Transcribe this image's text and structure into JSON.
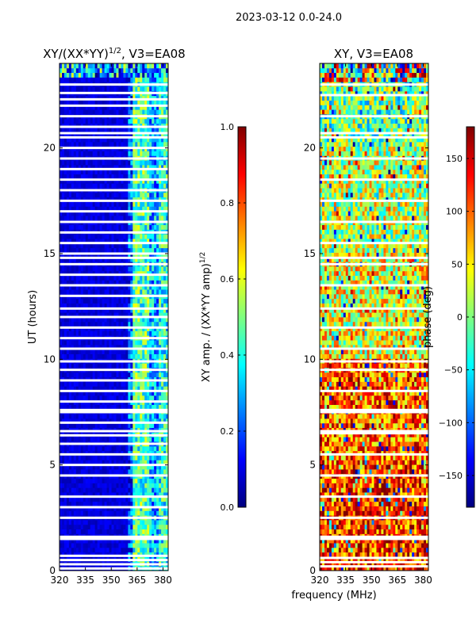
{
  "figure": {
    "suptitle": "2023-03-12 0.0-24.0",
    "xlabel_shared": "frequency (MHz)"
  },
  "colors": {
    "jet": [
      "#00007f",
      "#0000ff",
      "#007fff",
      "#00ffff",
      "#7fff7f",
      "#ffff00",
      "#ff7f00",
      "#ff0000",
      "#7f0000"
    ],
    "gap": "#ffffff",
    "frame": "#000000"
  },
  "chart_data": [
    {
      "type": "heatmap",
      "id": "amplitude",
      "title_main": "XY/(XX*YY)",
      "title_sup": "1/2",
      "title_tail": ", V3=EA08",
      "ylabel": "UT (hours)",
      "x_ticks": [
        320,
        335,
        350,
        365,
        380
      ],
      "y_ticks": [
        0,
        5,
        10,
        15,
        20
      ],
      "xlim": [
        320,
        383
      ],
      "ylim": [
        0,
        24
      ],
      "colorbar": {
        "label_main": "XY amp. / (XX*YY amp)",
        "label_sup": "1/2",
        "range": [
          0.0,
          1.0
        ],
        "ticks": [
          "0.0",
          "0.2",
          "0.4",
          "0.6",
          "0.8",
          "1.0"
        ],
        "tick_values": [
          0.0,
          0.2,
          0.4,
          0.6,
          0.8,
          1.0
        ]
      },
      "approx_value_bands_by_frequency_mhz": [
        {
          "from": 320,
          "to": 360,
          "value": 0.05
        },
        {
          "from": 360,
          "to": 363,
          "value": 0.2
        },
        {
          "from": 363,
          "to": 372,
          "value": 0.45
        },
        {
          "from": 372,
          "to": 377,
          "value": 0.3
        },
        {
          "from": 377,
          "to": 383,
          "value": 0.4
        }
      ],
      "blank_hours": [
        0.1,
        0.3,
        0.5,
        0.7,
        1.5,
        1.6,
        2.5,
        3.0,
        3.5,
        4.5,
        5.0,
        5.5,
        6.0,
        6.4,
        6.6,
        7.0,
        7.5,
        7.6,
        8.0,
        8.5,
        9.0,
        9.5,
        9.9,
        10.5,
        11.0,
        11.5,
        12.0,
        12.4,
        13.0,
        13.5,
        14.0,
        14.5,
        14.8,
        15.0,
        15.5,
        16.0,
        16.5,
        17.0,
        17.5,
        18.0,
        18.5,
        19.0,
        19.5,
        20.0,
        20.5,
        20.7,
        21.0,
        21.5,
        22.0,
        22.3,
        22.6,
        23.0
      ]
    },
    {
      "type": "heatmap",
      "id": "phase",
      "title_main": "XY, V3=EA08",
      "ylabel": "",
      "x_ticks": [
        320,
        335,
        350,
        365,
        380
      ],
      "y_ticks": [
        0,
        5,
        10,
        15,
        20
      ],
      "xlim": [
        320,
        383
      ],
      "ylim": [
        0,
        24
      ],
      "colorbar": {
        "label_main": "phase (deg)",
        "range": [
          -180,
          180
        ],
        "ticks": [
          "−150",
          "−100",
          "−50",
          "0",
          "50",
          "100",
          "150"
        ],
        "tick_values": [
          -150,
          -100,
          -50,
          0,
          50,
          100,
          150
        ]
      },
      "approx_phase_by_hour": [
        {
          "from": 0,
          "to": 5,
          "value": 120
        },
        {
          "from": 5,
          "to": 10,
          "value": 100
        },
        {
          "from": 10,
          "to": 15,
          "value": 40
        },
        {
          "from": 15,
          "to": 20,
          "value": 20
        },
        {
          "from": 20,
          "to": 24,
          "value": -10
        }
      ],
      "blank_hours": [
        0.2,
        0.4,
        0.6,
        1.5,
        1.6,
        2.5,
        3.5,
        4.5,
        5.5,
        6.5,
        6.6,
        7.5,
        7.6,
        8.5,
        9.5,
        9.9,
        10.5,
        11.5,
        12.4,
        13.5,
        14.5,
        14.8,
        15.5,
        16.5,
        17.5,
        18.5,
        19.5,
        20.5,
        20.7,
        21.5,
        22.5,
        23.0
      ]
    }
  ]
}
